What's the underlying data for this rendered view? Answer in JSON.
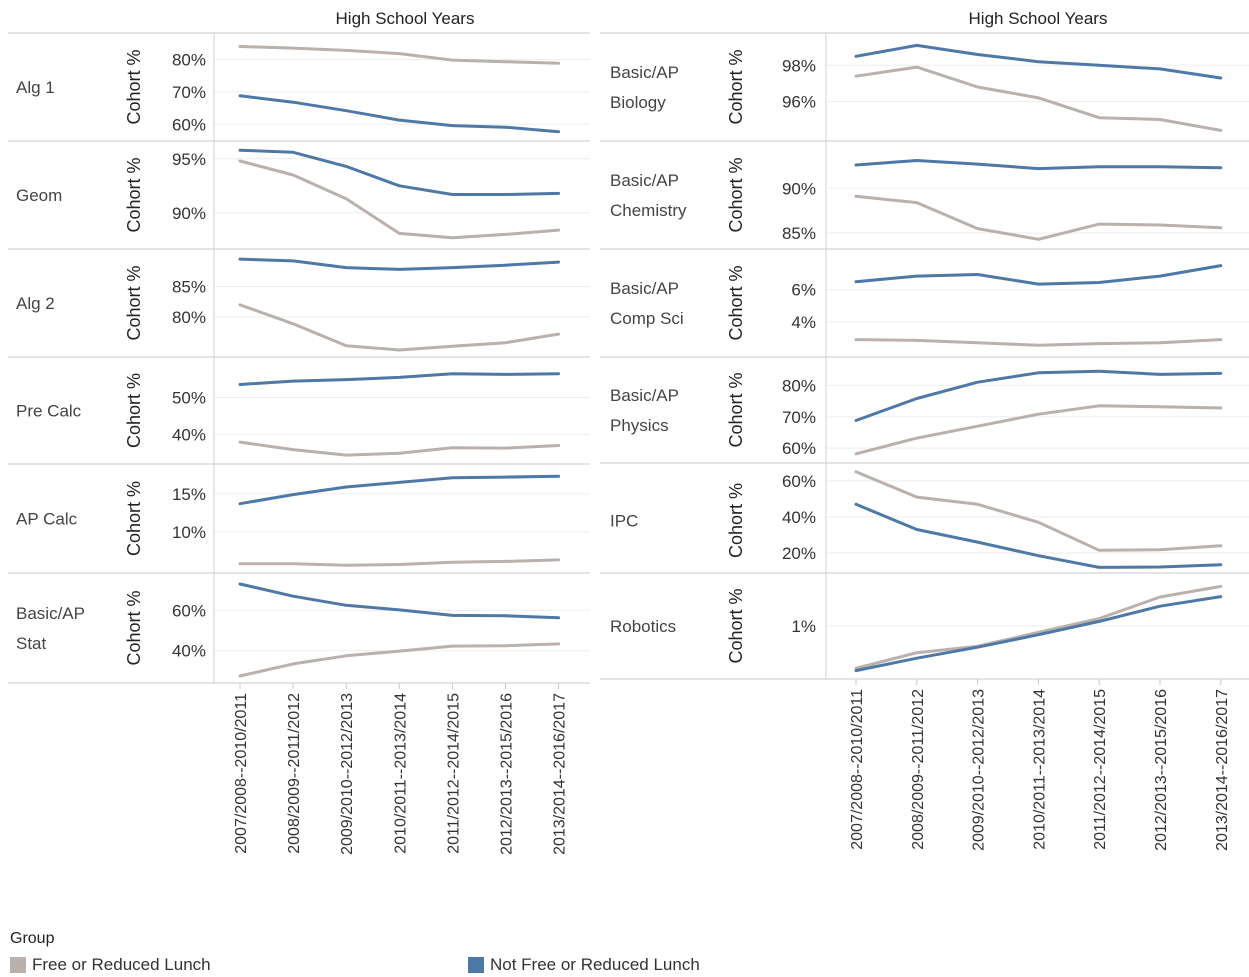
{
  "chart_data": {
    "type": "line",
    "x_axis_title": "High School Years",
    "y_axis_title": "Cohort %",
    "categories": [
      "2007/2008--2010/2011",
      "2008/2009--2011/2012",
      "2009/2010--2012/2013",
      "2010/2011--2013/2014",
      "2011/2012--2014/2015",
      "2012/2013--2015/2016",
      "2013/2014--2016/2017"
    ],
    "legend": {
      "title": "Group",
      "placement": "bottom",
      "items": [
        {
          "name": "Free or Reduced Lunch",
          "color": "#bab0ac"
        },
        {
          "name": "Not Free or Reduced Lunch",
          "color": "#4e79a7"
        }
      ]
    },
    "panels": [
      {
        "label": [
          "Alg 1"
        ],
        "ylim": [
          57,
          86
        ],
        "ticks": [
          60,
          70,
          80
        ],
        "series": [
          {
            "name": "Free or Reduced Lunch",
            "values": [
              84,
              83.5,
              82.8,
              81.8,
              79.8,
              79.3,
              78.8
            ]
          },
          {
            "name": "Not Free or Reduced Lunch",
            "values": [
              68.8,
              66.8,
              64.2,
              61.3,
              59.6,
              59.1,
              57.7
            ]
          }
        ]
      },
      {
        "label": [
          "Geom"
        ],
        "ylim": [
          87.3,
          96
        ],
        "ticks": [
          90,
          95
        ],
        "series": [
          {
            "name": "Free or Reduced Lunch",
            "values": [
              94.8,
              93.5,
              91.3,
              88.1,
              87.7,
              88.0,
              88.4
            ]
          },
          {
            "name": "Not Free or Reduced Lunch",
            "values": [
              95.8,
              95.6,
              94.3,
              92.5,
              91.7,
              91.7,
              91.8
            ]
          }
        ]
      },
      {
        "label": [
          "Alg 2"
        ],
        "ylim": [
          74.6,
          90
        ],
        "ticks": [
          80,
          85
        ],
        "series": [
          {
            "name": "Free or Reduced Lunch",
            "values": [
              82,
              78.9,
              75.3,
              74.6,
              75.2,
              75.8,
              77.2
            ]
          },
          {
            "name": "Not Free or Reduced Lunch",
            "values": [
              89.5,
              89.2,
              88.1,
              87.8,
              88.1,
              88.5,
              89.0
            ]
          }
        ]
      },
      {
        "label": [
          "Pre Calc"
        ],
        "ylim": [
          34,
          59
        ],
        "ticks": [
          40,
          50
        ],
        "series": [
          {
            "name": "Free or Reduced Lunch",
            "values": [
              38,
              36,
              34.5,
              35,
              36.5,
              36.4,
              37.1
            ]
          },
          {
            "name": "Not Free or Reduced Lunch",
            "values": [
              53.5,
              54.4,
              54.8,
              55.4,
              56.4,
              56.2,
              56.4
            ]
          }
        ]
      },
      {
        "label": [
          "AP Calc"
        ],
        "ylim": [
          5.5,
          18
        ],
        "ticks": [
          10,
          15
        ],
        "series": [
          {
            "name": "Free or Reduced Lunch",
            "values": [
              5.8,
              5.8,
              5.6,
              5.7,
              6.0,
              6.1,
              6.3
            ]
          },
          {
            "name": "Not Free or Reduced Lunch",
            "values": [
              13.7,
              14.9,
              15.9,
              16.5,
              17.1,
              17.2,
              17.3
            ]
          }
        ]
      },
      {
        "label": [
          "Basic/AP",
          "Stat"
        ],
        "ylim": [
          27.5,
          75
        ],
        "ticks": [
          40,
          60
        ],
        "series": [
          {
            "name": "Free or Reduced Lunch",
            "values": [
              27.5,
              33.5,
              37.5,
              39.8,
              42.3,
              42.5,
              43.4
            ]
          },
          {
            "name": "Not Free or Reduced Lunch",
            "values": [
              73,
              67,
              62.5,
              60.2,
              57.5,
              57.3,
              56.3
            ]
          }
        ]
      },
      {
        "label": [
          "Basic/AP",
          "Biology"
        ],
        "ylim": [
          94.2,
          99.4
        ],
        "ticks": [
          96,
          98
        ],
        "series": [
          {
            "name": "Free or Reduced Lunch",
            "values": [
              97.4,
              97.9,
              96.8,
              96.2,
              95.1,
              95.0,
              94.4
            ]
          },
          {
            "name": "Not Free or Reduced Lunch",
            "values": [
              98.5,
              99.1,
              98.6,
              98.2,
              98.0,
              97.8,
              97.3
            ]
          }
        ]
      },
      {
        "label": [
          "Basic/AP",
          "Chemistry"
        ],
        "ylim": [
          84,
          94.5
        ],
        "ticks": [
          85,
          90
        ],
        "series": [
          {
            "name": "Free or Reduced Lunch",
            "values": [
              89.1,
              88.4,
              85.5,
              84.3,
              86.0,
              85.9,
              85.6
            ]
          },
          {
            "name": "Not Free or Reduced Lunch",
            "values": [
              92.6,
              93.1,
              92.7,
              92.2,
              92.4,
              92.4,
              92.3
            ]
          }
        ]
      },
      {
        "label": [
          "Basic/AP",
          "Comp Sci"
        ],
        "ylim": [
          2.25,
          8.1
        ],
        "ticks": [
          4,
          6
        ],
        "series": [
          {
            "name": "Free or Reduced Lunch",
            "values": [
              2.9,
              2.85,
              2.7,
              2.55,
              2.65,
              2.7,
              2.9
            ]
          },
          {
            "name": "Not Free or Reduced Lunch",
            "values": [
              6.5,
              6.85,
              6.95,
              6.35,
              6.45,
              6.85,
              7.5
            ]
          }
        ]
      },
      {
        "label": [
          "Basic/AP",
          "Physics"
        ],
        "ylim": [
          57.5,
          86.8
        ],
        "ticks": [
          60,
          70,
          80
        ],
        "series": [
          {
            "name": "Free or Reduced Lunch",
            "values": [
              58.2,
              63.2,
              67.0,
              70.8,
              73.5,
              73.2,
              72.8
            ]
          },
          {
            "name": "Not Free or Reduced Lunch",
            "values": [
              68.8,
              75.8,
              81.0,
              84.0,
              84.5,
              83.5,
              83.8
            ]
          }
        ]
      },
      {
        "label": [
          "IPC"
        ],
        "ylim": [
          10,
          66
        ],
        "ticks": [
          20,
          40,
          60
        ],
        "series": [
          {
            "name": "Free or Reduced Lunch",
            "values": [
              65,
              51,
              47,
              37,
              21.5,
              21.8,
              24
            ]
          },
          {
            "name": "Not Free or Reduced Lunch",
            "values": [
              47,
              33,
              26,
              18.5,
              12,
              12.2,
              13.5
            ]
          }
        ]
      },
      {
        "label": [
          "Robotics"
        ],
        "ylim": [
          0,
          2
        ],
        "ticks": [
          1
        ],
        "ticklabels": [
          "1%"
        ],
        "series": [
          {
            "name": "Free or Reduced Lunch",
            "values": [
              0.08,
              0.42,
              0.56,
              0.86,
              1.16,
              1.63,
              1.86
            ]
          },
          {
            "name": "Not Free or Reduced Lunch",
            "values": [
              0.03,
              0.3,
              0.54,
              0.81,
              1.1,
              1.43,
              1.64
            ]
          }
        ]
      }
    ]
  }
}
